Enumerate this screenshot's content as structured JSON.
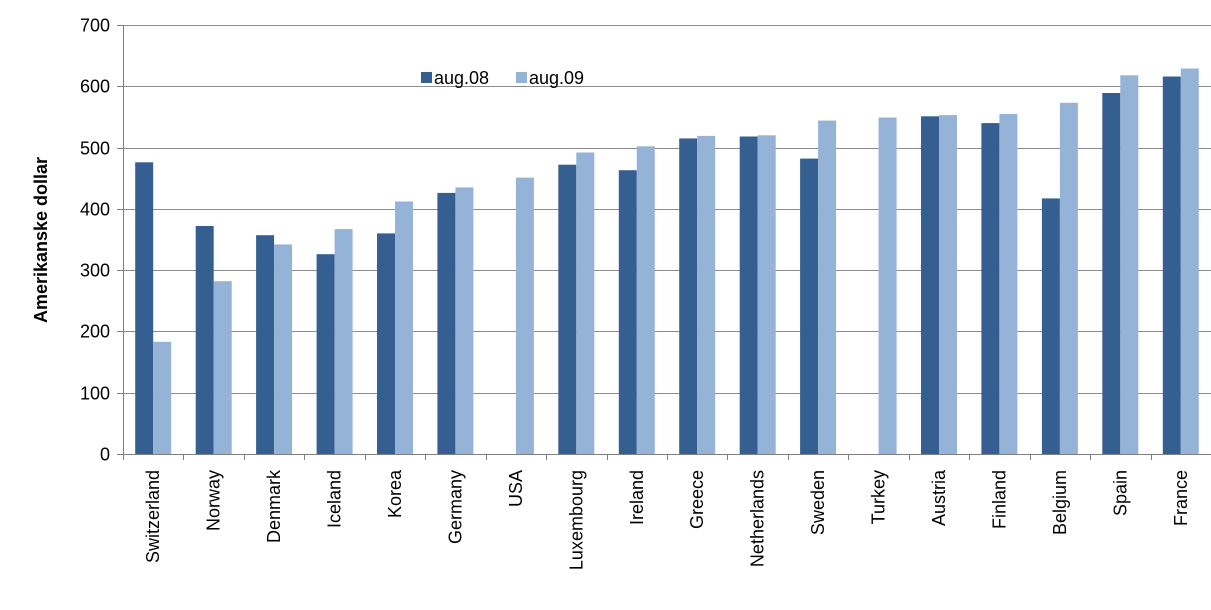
{
  "chart_data": {
    "type": "bar",
    "title": "",
    "xlabel": "",
    "ylabel": "Amerikanske dollar",
    "ylim": [
      0,
      700
    ],
    "yticks": [
      0,
      100,
      200,
      300,
      400,
      500,
      600,
      700
    ],
    "grid": true,
    "legend_position": "top-center",
    "categories": [
      "Switzerland",
      "Norway",
      "Denmark",
      "Iceland",
      "Korea",
      "Germany",
      "USA",
      "Luxembourg",
      "Ireland",
      "Greece",
      "Netherlands",
      "Sweden",
      "Turkey",
      "Austria",
      "Finland",
      "Belgium",
      "Spain",
      "France"
    ],
    "series": [
      {
        "name": "aug.08",
        "color": "#365f91",
        "values": [
          476,
          372,
          357,
          326,
          360,
          426,
          null,
          472,
          463,
          515,
          518,
          482,
          null,
          551,
          540,
          417,
          589,
          616
        ]
      },
      {
        "name": "aug.09",
        "color": "#95b3d7",
        "values": [
          183,
          282,
          342,
          367,
          412,
          435,
          451,
          492,
          502,
          519,
          520,
          544,
          549,
          553,
          555,
          573,
          618,
          629
        ]
      }
    ]
  }
}
